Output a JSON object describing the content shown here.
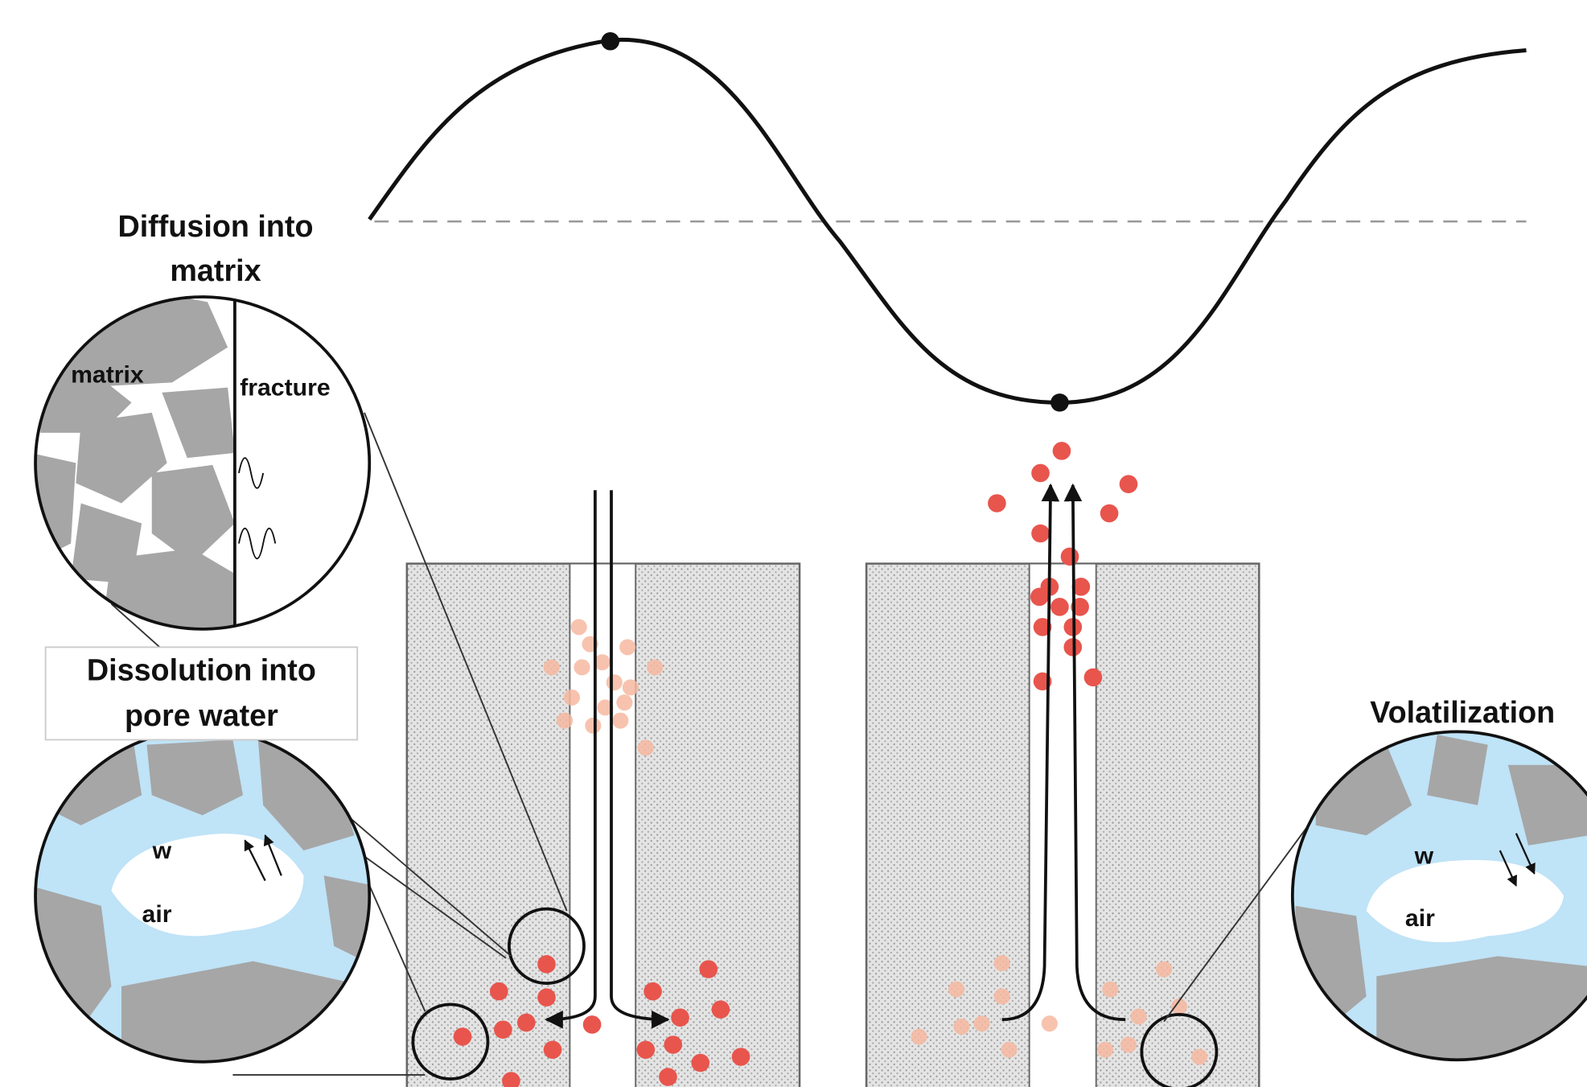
{
  "labels": {
    "diffusion": [
      "Diffusion into",
      "matrix"
    ],
    "matrix": "matrix",
    "fracture": "fracture",
    "dissolution": [
      "Dissolution into",
      "pore water"
    ],
    "dissolution_water": "w",
    "dissolution_air": "air",
    "volatilization": "Volatilization",
    "volatilization_water": "w",
    "volatilization_air": "air"
  }
}
